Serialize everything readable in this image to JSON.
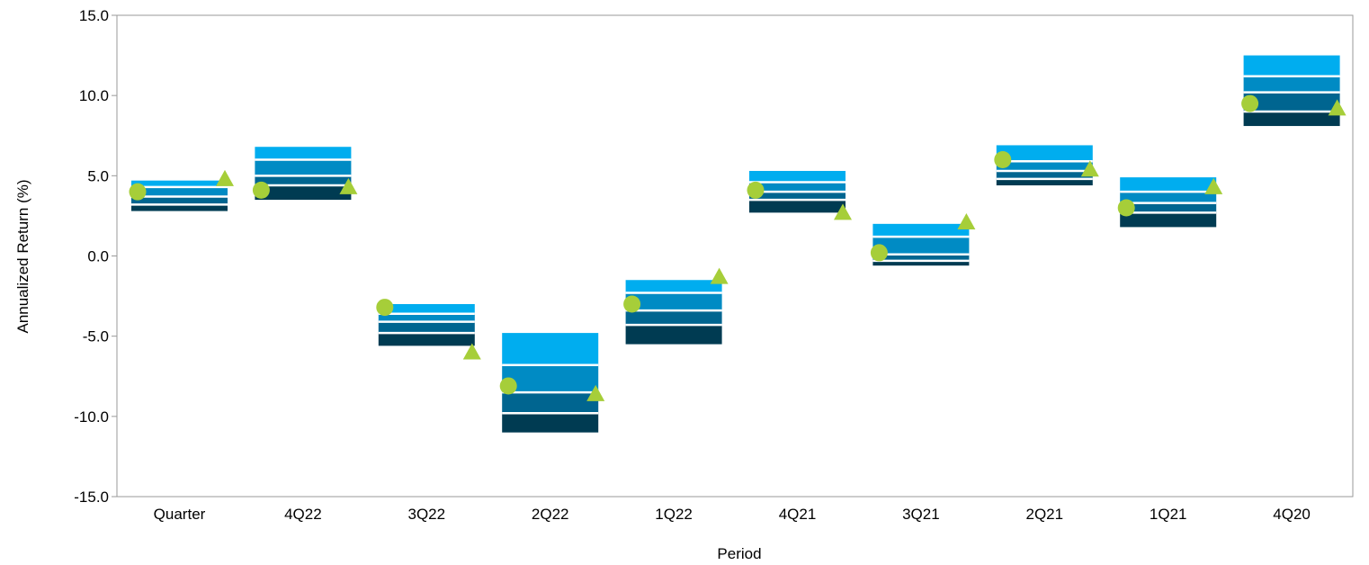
{
  "chart_data": {
    "type": "floating-bar",
    "xlabel": "Period",
    "ylabel": "Annualized Return (%)",
    "ylim": [
      -15,
      15
    ],
    "yticks": [
      "15.0",
      "10.0",
      "5.0",
      "0.0",
      "-5.0",
      "-10.0",
      "-15.0"
    ],
    "grid": false,
    "categories": [
      "Quarter",
      "4Q22",
      "3Q22",
      "2Q22",
      "1Q22",
      "4Q21",
      "3Q21",
      "2Q21",
      "1Q21",
      "4Q20"
    ],
    "band_colors": [
      "#00adef",
      "#008bc4",
      "#006590",
      "#003b52"
    ],
    "marker_color": "#a6ce39",
    "bands": [
      [
        4.7,
        4.3,
        3.7,
        3.2,
        2.8
      ],
      [
        6.8,
        6.0,
        5.0,
        4.4,
        3.5
      ],
      [
        -3.0,
        -3.6,
        -4.1,
        -4.8,
        -5.6
      ],
      [
        -4.8,
        -6.8,
        -8.5,
        -9.8,
        -11.0
      ],
      [
        -1.5,
        -2.3,
        -3.4,
        -4.3,
        -5.5
      ],
      [
        5.3,
        4.6,
        4.0,
        3.5,
        2.7
      ],
      [
        2.0,
        1.2,
        0.1,
        -0.3,
        -0.6
      ],
      [
        6.9,
        5.9,
        5.3,
        4.8,
        4.4
      ],
      [
        4.9,
        4.0,
        3.3,
        2.7,
        1.8
      ],
      [
        12.5,
        11.2,
        10.2,
        9.0,
        8.1
      ]
    ],
    "series": [
      {
        "marker": "circle",
        "values": [
          4.0,
          4.1,
          -3.2,
          -8.1,
          -3.0,
          4.1,
          0.2,
          6.0,
          3.0,
          9.5
        ]
      },
      {
        "marker": "triangle",
        "values": [
          4.8,
          4.3,
          -6.0,
          -8.6,
          -1.3,
          2.7,
          2.1,
          5.4,
          4.3,
          9.2
        ]
      }
    ]
  }
}
